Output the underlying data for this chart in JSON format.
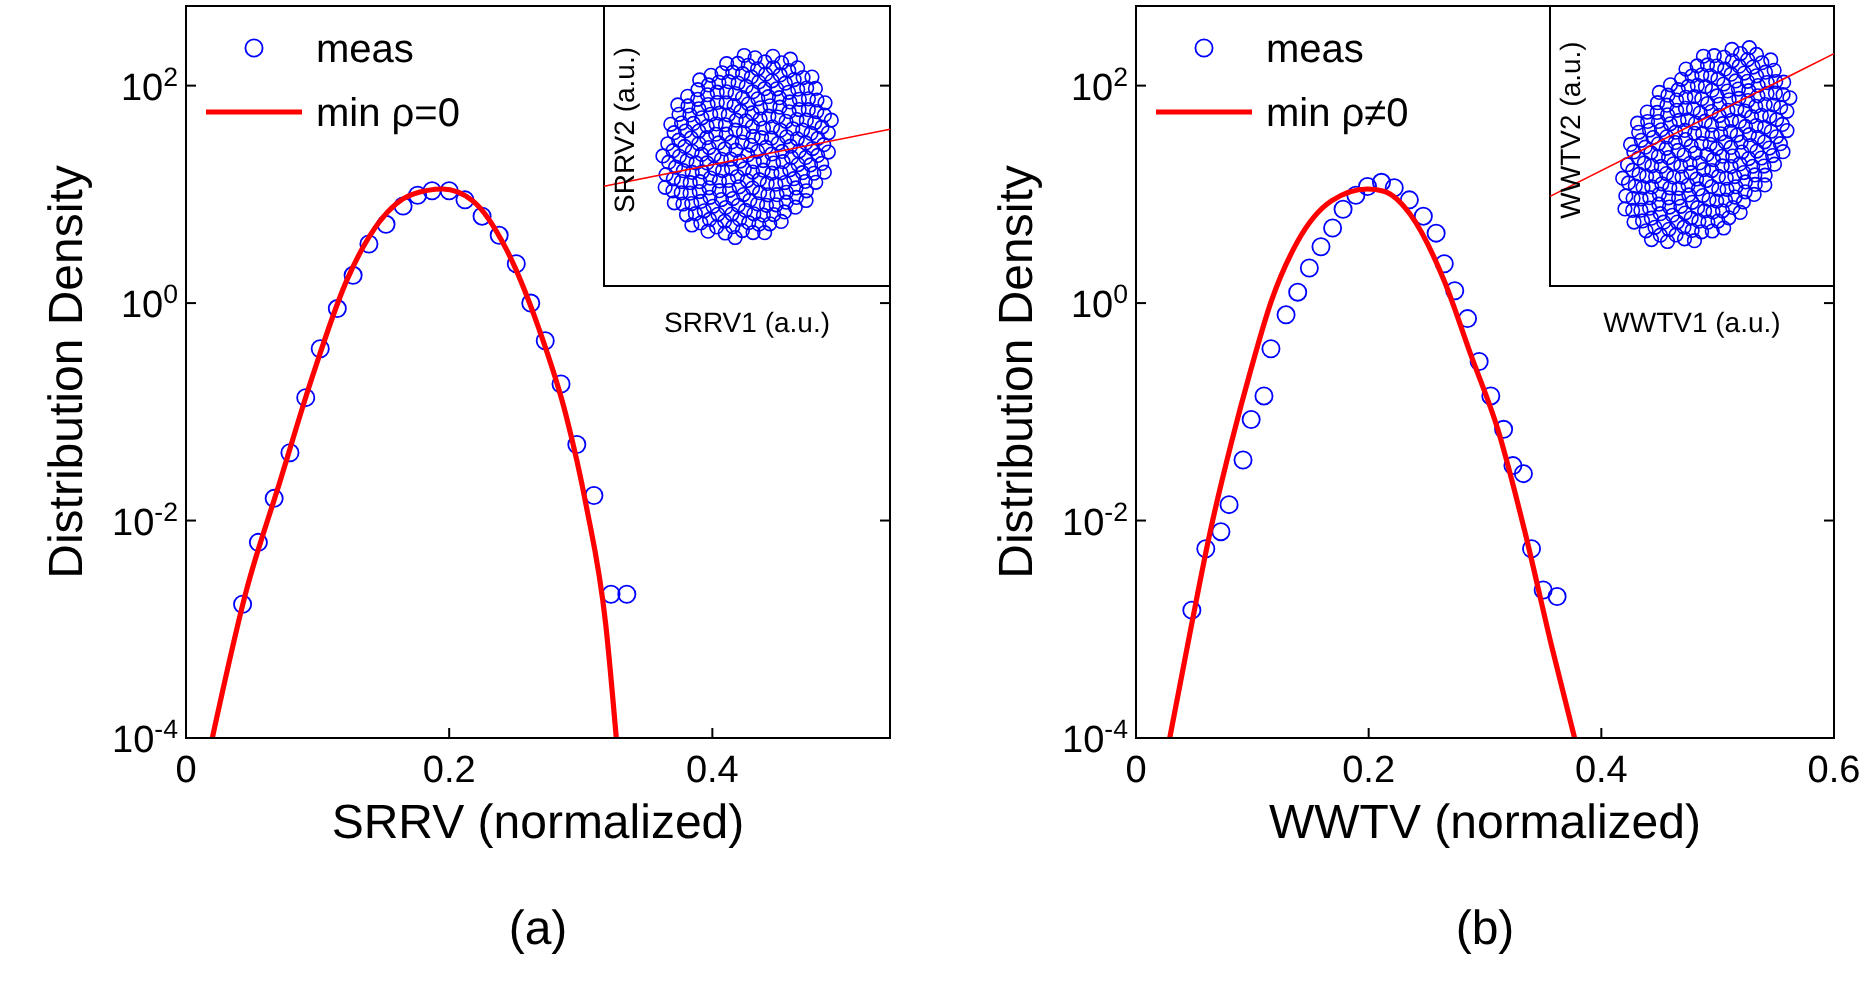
{
  "chart_data": [
    {
      "type": "scatter",
      "title": "(a)",
      "xlabel": "SRRV (normalized)",
      "ylabel": "Distribution Density",
      "annotations": [
        "SRRV1 (a.u.)",
        "SRRV2 (a.u.)"
      ],
      "log": "y",
      "xlim": [
        0,
        0.535
      ],
      "xticks": [
        0,
        0.2,
        0.4
      ],
      "ylim": [
        0.0001,
        540
      ],
      "yticks": [
        {
          "value": 0.0001,
          "label": "10$^{-4}$"
        },
        {
          "value": 0.01,
          "label": "10$^{-2}$"
        },
        {
          "value": 1,
          "label": "10$^{0}$"
        },
        {
          "value": 100,
          "label": "10$^{2}$"
        }
      ],
      "legend": "top left",
      "marker": "circle",
      "line_style": "solid",
      "grid": false,
      "series": [
        {
          "name": "meas",
          "color": "#0000ff",
          "x": [
            0.043,
            0.055,
            0.067,
            0.079,
            0.091,
            0.102,
            0.115,
            0.127,
            0.139,
            0.152,
            0.165,
            0.176,
            0.187,
            0.2,
            0.212,
            0.225,
            0.238,
            0.251,
            0.262,
            0.273,
            0.285,
            0.297,
            0.31,
            0.323,
            0.335
          ],
          "values": [
            0.0017,
            0.0063,
            0.016,
            0.042,
            0.135,
            0.38,
            0.89,
            1.8,
            3.5,
            5.3,
            7.8,
            9.8,
            10.8,
            10.8,
            8.9,
            6.3,
            4.2,
            2.3,
            1.0,
            0.45,
            0.18,
            0.05,
            0.017,
            0.0021,
            0.0021
          ]
        },
        {
          "name": "min ρ=0",
          "type": "line",
          "marker": "none",
          "color": "#ff0000",
          "x": [
            0.02,
            0.046,
            0.071,
            0.096,
            0.122,
            0.147,
            0.172,
            0.195,
            0.218,
            0.243,
            0.268,
            0.289,
            0.304,
            0.319,
            0.327
          ],
          "values": [
            0.0001,
            0.0023,
            0.022,
            0.21,
            1.6,
            5.6,
            10,
            11.2,
            8.7,
            3.2,
            0.59,
            0.091,
            0.014,
            0.0011,
            0.0001
          ]
        }
      ]
    },
    {
      "type": "scatter",
      "title": "(b)",
      "xlabel": "WWTV (normalized)",
      "ylabel": "Distribution Density",
      "annotations": [
        "WWTV1 (a.u.)",
        "WWTV2 (a.u.)"
      ],
      "log": "y",
      "xlim": [
        0,
        0.6
      ],
      "xticks": [
        0,
        0.2,
        0.4,
        0.6
      ],
      "ylim": [
        0.0001,
        540
      ],
      "yticks": [
        {
          "value": 0.0001,
          "label": "10$^{-4}$"
        },
        {
          "value": 0.01,
          "label": "10$^{-2}$"
        },
        {
          "value": 1,
          "label": "10$^{0}$"
        },
        {
          "value": 100,
          "label": "10$^{2}$"
        }
      ],
      "legend": "top left",
      "marker": "circle",
      "line_style": "solid",
      "grid": false,
      "series": [
        {
          "name": "meas",
          "color": "#0000ff",
          "x": [
            0.048,
            0.06,
            0.073,
            0.08,
            0.092,
            0.099,
            0.11,
            0.116,
            0.129,
            0.139,
            0.149,
            0.159,
            0.169,
            0.178,
            0.189,
            0.199,
            0.211,
            0.222,
            0.235,
            0.247,
            0.258,
            0.265,
            0.274,
            0.285,
            0.295,
            0.305,
            0.316,
            0.324,
            0.333,
            0.34,
            0.35,
            0.362
          ],
          "values": [
            0.0015,
            0.0055,
            0.0079,
            0.014,
            0.036,
            0.085,
            0.14,
            0.38,
            0.78,
            1.26,
            2.1,
            3.3,
            4.9,
            7.3,
            9.8,
            11.8,
            12.9,
            11.5,
            8.9,
            6.3,
            4.4,
            2.3,
            1.3,
            0.72,
            0.29,
            0.14,
            0.069,
            0.032,
            0.027,
            0.0055,
            0.0023,
            0.002
          ]
        },
        {
          "name": "min ρ≠0",
          "type": "line",
          "marker": "none",
          "color": "#ff0000",
          "x": [
            0.029,
            0.047,
            0.064,
            0.082,
            0.099,
            0.116,
            0.139,
            0.168,
            0.199,
            0.213,
            0.236,
            0.265,
            0.288,
            0.311,
            0.334,
            0.357,
            0.377
          ],
          "values": [
            0.0001,
            0.001,
            0.0081,
            0.052,
            0.25,
            1.02,
            3.7,
            8.7,
            11.2,
            10.7,
            6.5,
            1.6,
            0.33,
            0.069,
            0.0081,
            0.00072,
            0.0001
          ]
        }
      ]
    }
  ]
}
